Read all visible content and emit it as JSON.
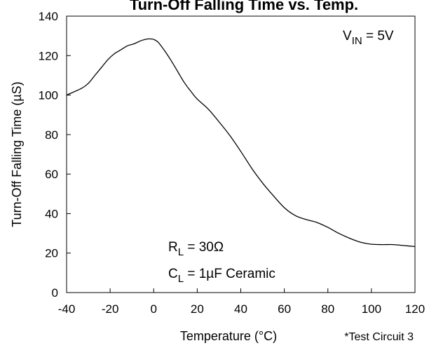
{
  "chart_data": {
    "type": "line",
    "title": "Turn-Off Falling Time vs. Temp.",
    "xlabel": "Temperature (°C)",
    "ylabel": "Turn-Off Falling Time (µS)",
    "xlim": [
      -40,
      120
    ],
    "ylim": [
      0,
      140
    ],
    "xticks": [
      -40,
      -20,
      0,
      20,
      40,
      60,
      80,
      100,
      120
    ],
    "yticks": [
      0,
      20,
      40,
      60,
      80,
      100,
      120,
      140
    ],
    "grid": false,
    "series": [
      {
        "x": [
          -40,
          -33,
          -30,
          -27,
          -24,
          -21,
          -18,
          -15,
          -12,
          -9,
          -6,
          -4,
          -2,
          0,
          2,
          5,
          8,
          11,
          14,
          17,
          20,
          25,
          30,
          35,
          40,
          45,
          50,
          55,
          60,
          65,
          70,
          75,
          80,
          85,
          90,
          95,
          100,
          105,
          110,
          115,
          120
        ],
        "y": [
          100,
          103.5,
          106,
          110,
          114,
          118,
          121,
          123,
          125,
          126,
          127.5,
          128.2,
          128.5,
          128.2,
          126.8,
          122.5,
          117.5,
          112,
          106.5,
          102,
          98,
          93,
          86.5,
          79.5,
          71.5,
          63,
          55.5,
          49,
          43,
          39,
          37,
          35.5,
          33,
          30,
          27.5,
          25.5,
          24.5,
          24.3,
          24.3,
          23.8,
          23.3
        ],
        "color": "#000000"
      }
    ],
    "annotations": {
      "vin": {
        "main": "V",
        "sub": "IN",
        "rest": " = 5V"
      },
      "rl": {
        "main": "R",
        "sub": "L",
        "rest": " = 30Ω"
      },
      "cl": {
        "main": "C",
        "sub": "L",
        "rest": " = 1µF Ceramic"
      },
      "note": "*Test Circuit 3"
    }
  }
}
